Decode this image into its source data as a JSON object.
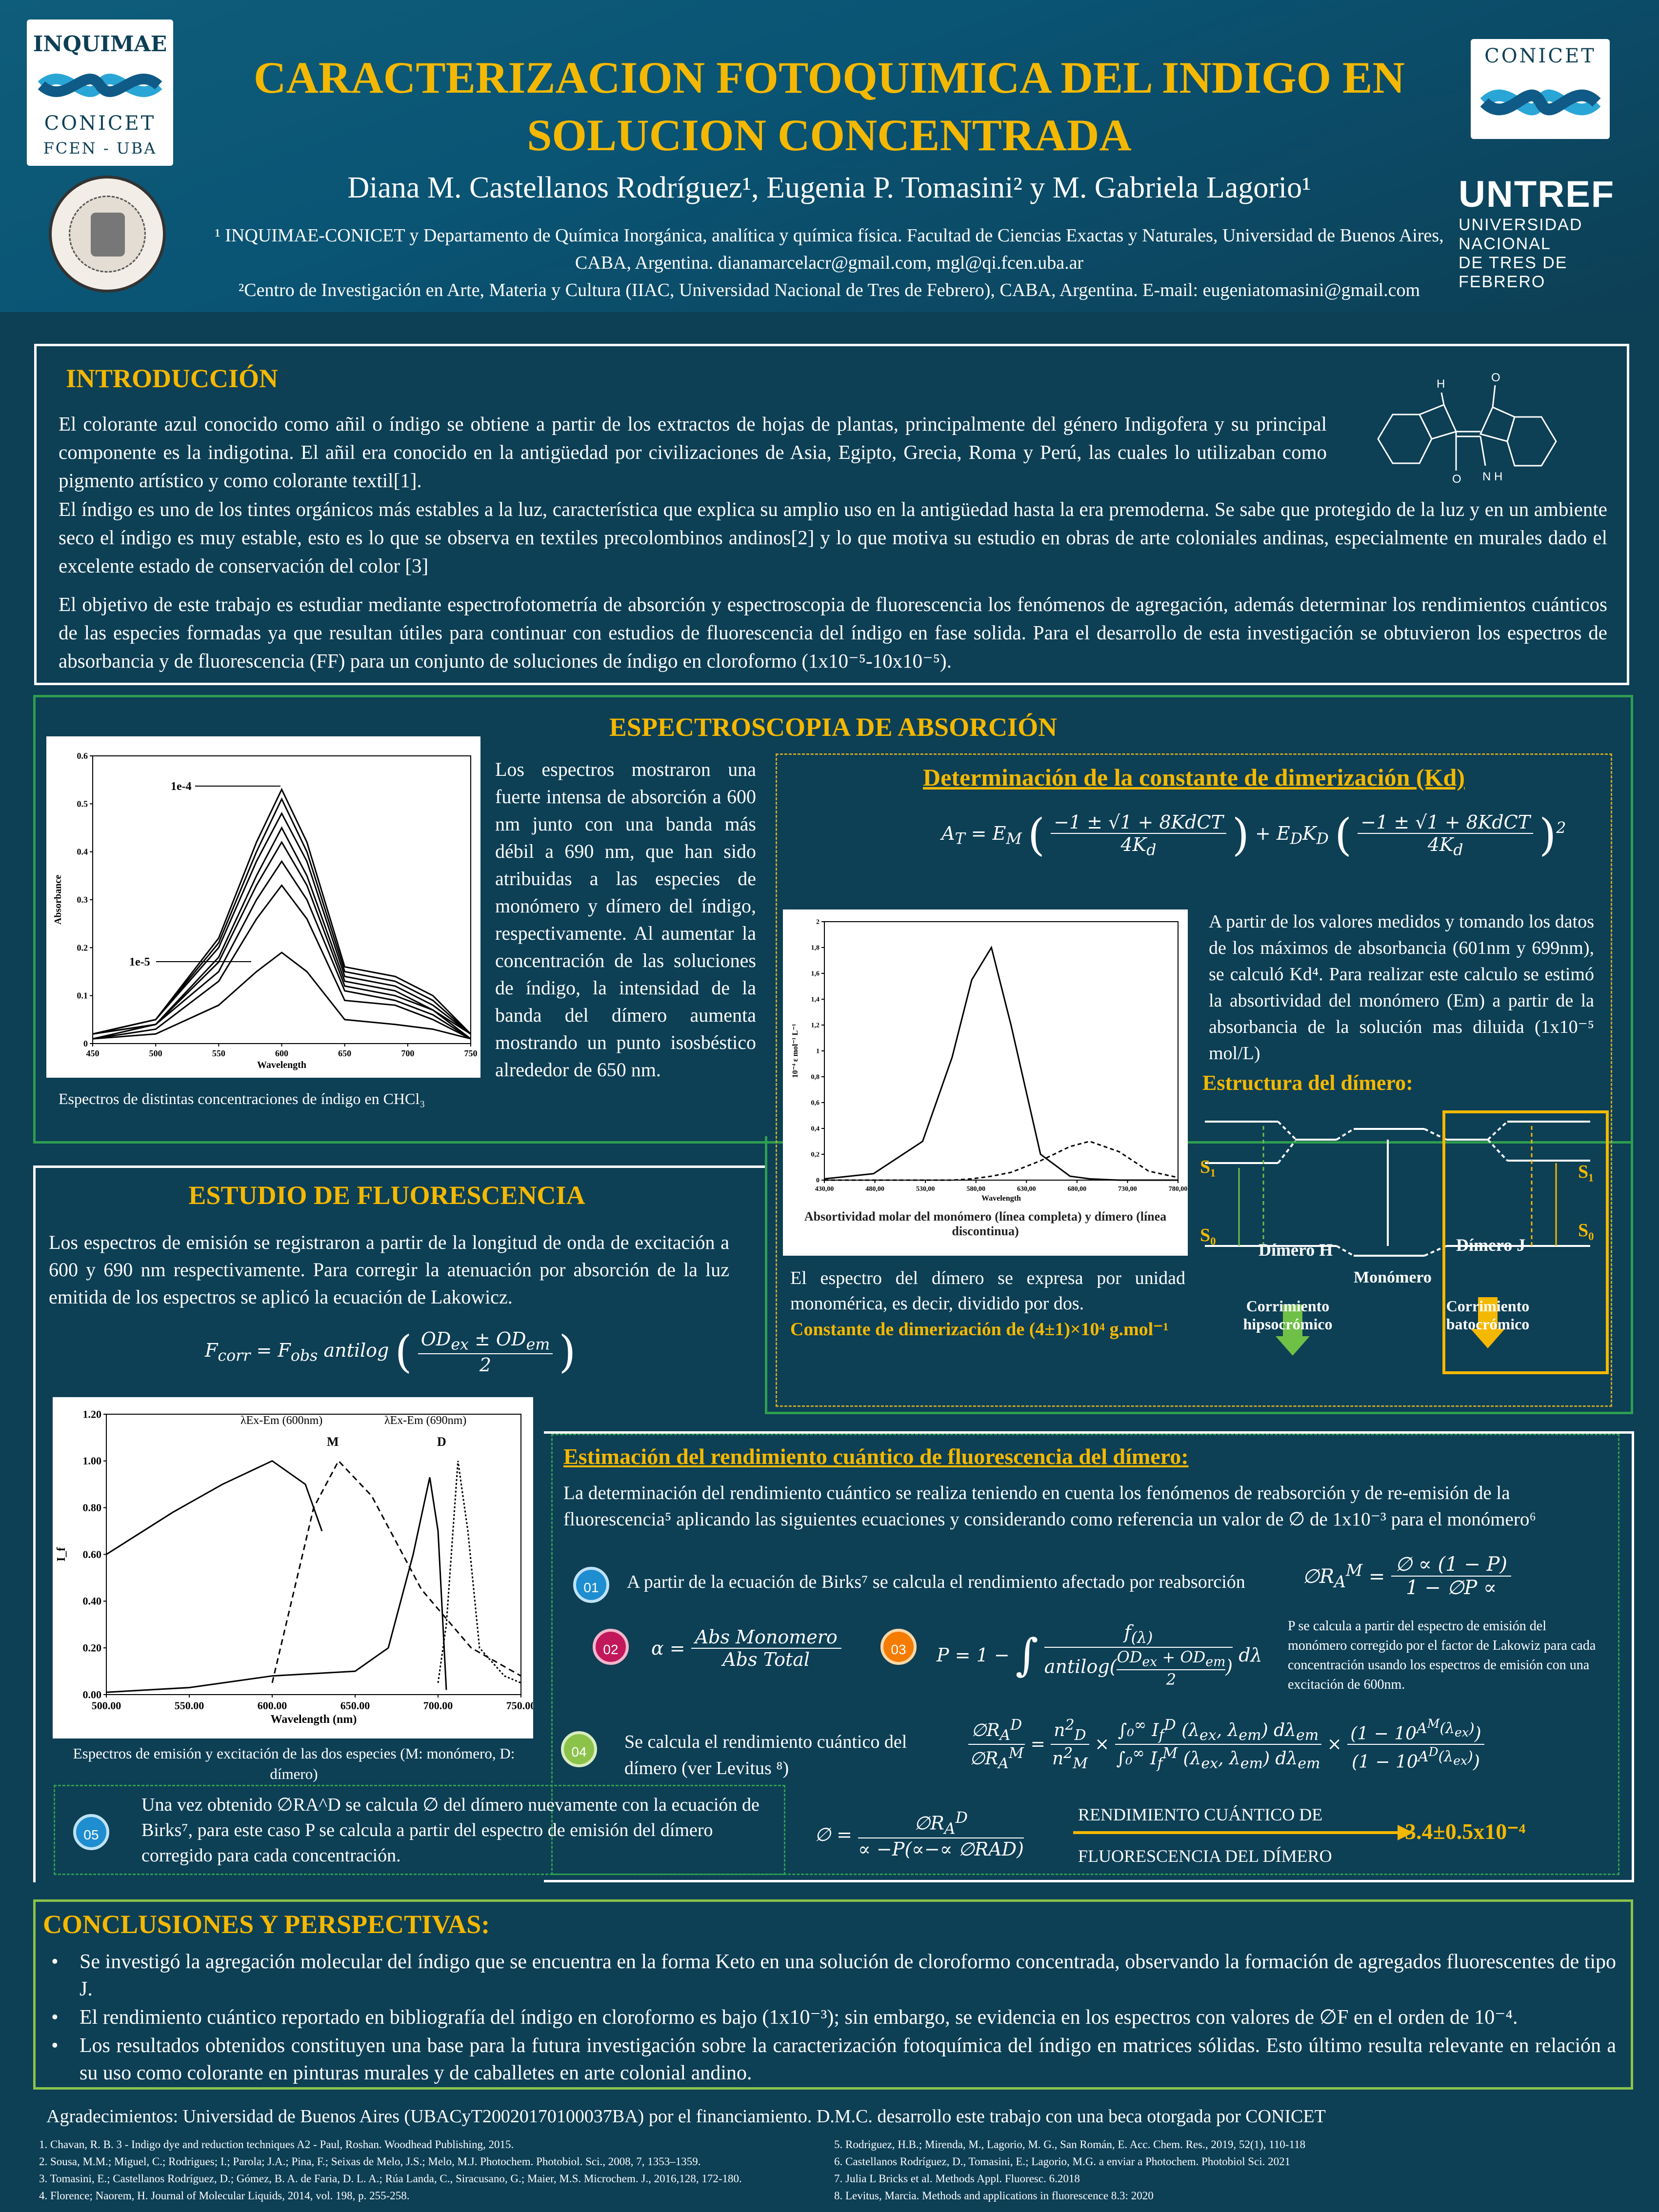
{
  "header": {
    "title_line1": "CARACTERIZACION FOTOQUIMICA DEL INDIGO EN",
    "title_line2": "SOLUCION CONCENTRADA",
    "authors": "Diana M. Castellanos Rodríguez¹, Eugenia P. Tomasini² y M. Gabriela Lagorio¹",
    "affil1": "¹ INQUIMAE-CONICET y Departamento de Química Inorgánica, analítica y química física. Facultad de Ciencias Exactas y Naturales, Universidad de Buenos Aires, CABA, Argentina. dianamarcelacr@gmail.com, mgl@qi.fcen.uba.ar",
    "affil2": "²Centro de Investigación en Arte, Materia y Cultura (IIAC, Universidad Nacional de Tres de Febrero), CABA, Argentina. E-mail: eugeniatomasini@gmail.com"
  },
  "logos": {
    "inquimae_top": "INQUIMAE",
    "inquimae_mid": "CONICET",
    "inquimae_bot": "FCEN - UBA",
    "conicet": "CONICET",
    "untref": "UNTREF",
    "untref_sub1": "UNIVERSIDAD NACIONAL",
    "untref_sub2": "DE TRES DE FEBRERO"
  },
  "intro": {
    "title": "INTRODUCCIÓN",
    "p1": "El colorante azul conocido como añil o índigo se obtiene a partir de los extractos de hojas de plantas, principalmente del género Indigofera y su principal componente es la indigotina. El añil era conocido en la antigüedad por civilizaciones de Asia, Egipto, Grecia, Roma y Perú, las cuales lo utilizaban como pigmento artístico y como colorante textil[1].",
    "p2": "El índigo es uno de los tintes orgánicos más estables a la luz, característica que explica su amplio uso en la antigüedad hasta la era premoderna. Se sabe que protegido de la luz y en un ambiente seco el índigo es muy estable, esto es lo que se observa en textiles precolombinos andinos[2] y lo que motiva su estudio en obras de arte coloniales andinas, especialmente en murales dado el excelente estado de conservación del color [3]",
    "p3": "El objetivo de este trabajo es estudiar mediante espectrofotometría de absorción y espectroscopia de fluorescencia los fenómenos de agregación, además determinar los rendimientos cuánticos de las especies formadas ya que resultan útiles para continuar con estudios de fluorescencia del índigo en fase solida. Para el desarrollo de esta investigación se obtuvieron los espectros de absorbancia y de fluorescencia (FF) para un conjunto de soluciones de índigo en cloroformo (1x10⁻⁵-10x10⁻⁵).",
    "mol_h1": "H",
    "mol_o1": "O",
    "mol_o2": "O",
    "mol_h2": "N\nH"
  },
  "absorcion": {
    "title": "ESPECTROSCOPIA DE ABSORCIÓN",
    "text": "Los espectros mostraron una fuerte intensa de absorción a 600 nm junto con una banda más débil a 690 nm, que han sido atribuidas a las especies de monómero y dímero del índigo, respectivamente. Al aumentar la concentración de las soluciones de índigo, la intensidad de la banda del dímero aumenta mostrando un punto isosbéstico alrededor de 650 nm.",
    "caption": "Espectros de distintas concentraciones de índigo en CHCl₃"
  },
  "kd": {
    "title": "Determinación de la constante de dimerización (Kd)",
    "eq_left": "A_T = E_M ( (−1 ± √(1 + 8KdCT)) / 4K_d ) + E_D K_D ( (−1 ± √(1 + 8KdCT)) / 4K_d )²",
    "text": "A partir de los valores medidos y tomando los datos de los máximos de absorbancia (601nm y 699nm), se calculó Kd⁴. Para realizar este calculo se estimó la absortividad del monómero (Em) a partir de la absorbancia de la solución mas diluida  (1x10⁻⁵ mol/L)",
    "estructura_title": "Estructura del dímero:",
    "mol_caption": "Absortividad molar del monómero (línea completa) y dímero (línea discontinua)",
    "dimer_text": "El espectro del dímero se expresa por unidad monomérica, es decir, dividido por dos.",
    "dimer_const": "Constante de dimerización de (4±1)×10⁴ g.mol⁻¹",
    "dimero_h": "Dímero H",
    "monomero": "Monómero",
    "dimero_j": "Dímero J",
    "corr_hipso": "Corrimiento hipsocrómico",
    "corr_bato": "Corrimiento batocrómico",
    "s1": "S₁",
    "s0": "S₀"
  },
  "fluor": {
    "title": "ESTUDIO DE FLUORESCENCIA",
    "text": "Los espectros de emisión se registraron a partir de la longitud de onda de excitación a 600 y 690 nm respectivamente. Para corregir la atenuación por absorción de la luz emitida de los espectros  se aplicó la ecuación de Lakowicz.",
    "eq": "F_corr = F_obs antilog( (OD_ex ± OD_em) / 2 )",
    "caption": "Espectros de emisión y excitación de las dos especies (M: monómero, D: dímero)",
    "label_m": "λEx-Em (600nm)",
    "label_d": "λEx-Em (690nm)",
    "m": "M",
    "d": "D"
  },
  "rendimiento": {
    "title": "Estimación del rendimiento cuántico de fluorescencia del dímero:",
    "intro": "La determinación del rendimiento cuántico se realiza teniendo en cuenta los fenómenos de reabsorción y de re-emisión de la fluorescencia⁵  aplicando las siguientes ecuaciones y considerando como referencia un valor de ∅ de 1x10⁻³ para el monómero⁶",
    "s01": "A partir de la ecuación de Birks⁷ se calcula el rendimiento afectado por reabsorción",
    "eq01": "∅R_A^M = ∅ ∝ (1 − P) / (1 − ∅P ∝)",
    "eq02": "α = Abs Monomero / Abs Total",
    "eq03": "P = 1 − ∫ f(λ) / antilog((OD_ex + OD_em)/2) dλ",
    "p_note": "P se calcula a partir del espectro de emisión del monómero corregido por el factor de Lakowiz para cada concentración usando los espectros de emisión con una excitación de 600nm.",
    "s04": "Se calcula el rendimiento cuántico del dímero (ver Levitus ⁸)",
    "s05": "Una vez obtenido ∅RA^D se calcula ∅ del dímero nuevamente con la ecuación de Birks⁷, para este caso P  se calcula a partir del espectro de emisión del dímero corregido para cada concentración.",
    "eq05": "∅ = ∅RA^D / (∝ − P(∝ − ∝ ∅RAD))",
    "result_label1": "RENDIMIENTO CUÁNTICO DE",
    "result_label2": "FLUORESCENCIA DEL DÍMERO",
    "result_value": "3.4±0.5x10⁻⁴",
    "n01": "01",
    "n02": "02",
    "n03": "03",
    "n04": "04",
    "n05": "05"
  },
  "conclusiones": {
    "title": "CONCLUSIONES Y PERSPECTIVAS:",
    "items": [
      "Se investigó la agregación molecular del índigo que se encuentra en la forma Keto en una solución de cloroformo concentrada, observando la formación de agregados fluorescentes de tipo J.",
      "El rendimiento cuántico reportado en bibliografía del índigo en cloroformo es bajo (1x10⁻³); sin embargo, se evidencia en los espectros con valores de ∅F en el orden de 10⁻⁴.",
      "Los resultados obtenidos constituyen una base para la futura investigación sobre la caracterización fotoquímica del índigo en matrices sólidas. Esto último resulta relevante en relación a su uso como colorante en pinturas murales y de caballetes en arte colonial andino."
    ]
  },
  "agradecimientos": "Agradecimientos: Universidad de Buenos Aires (UBACyT20020170100037BA) por el financiamiento. D.M.C. desarrollo este trabajo con una beca otorgada por CONICET",
  "references_left": [
    "1.      Chavan, R. B. 3 - Indigo dye and reduction techniques A2 - Paul, Roshan. Woodhead Publishing, 2015.",
    "2.      Sousa, M.M.; Miguel, C.; Rodrigues; I.; Parola; J.A.; Pina, F.; Seixas de Melo, J.S.; Melo, M.J. Photochem. Photobiol. Sci., 2008, 7, 1353–1359.",
    "3.      Tomasini, E.; Castellanos Rodríguez, D.; Gómez, B. A. de Faria, D. L. A.; Rúa Landa, C., Siracusano, G.; Maier, M.S. Microchem. J., 2016,128, 172-180.",
    "4.      Florence; Naorem, H. Journal of  Molecular Liquids, 2014, vol. 198, p. 255-258."
  ],
  "references_right": [
    "5.      Rodriguez, H.B.; Mirenda, M., Lagorio, M. G., San Román, E. Acc. Chem. Res., 2019, 52(1), 110-118",
    "6.      Castellanos Rodríguez, D., Tomasini, E.; Lagorio, M.G. a enviar a Photochem. Photobiol Sci.  2021",
    "7.      Julia L Bricks et al. Methods Appl. Fluoresc. 6.2018",
    "8.      Levitus, Marcia. Methods and applications in fluorescence 8.3: 2020"
  ],
  "colors": {
    "background": "#0d3f55",
    "accent_yellow": "#f5b800",
    "green": "#2e9e4f"
  },
  "chart_data": [
    {
      "type": "line",
      "title": "",
      "xlabel": "Wavelength",
      "ylabel": "Absorbance",
      "xlim": [
        450,
        750
      ],
      "ylim": [
        0,
        0.6
      ],
      "x_ticks": [
        "450",
        "500",
        "550",
        "600",
        "650",
        "700",
        "750"
      ],
      "y_ticks": [
        "0",
        "0.1",
        "0.2",
        "0.3",
        "0.4",
        "0.5",
        "0.6"
      ],
      "annotations": [
        "1e-4",
        "1e-5"
      ],
      "x": [
        450,
        500,
        550,
        580,
        600,
        620,
        650,
        690,
        720,
        750
      ],
      "series": [
        {
          "values": [
            0.02,
            0.05,
            0.22,
            0.42,
            0.53,
            0.42,
            0.16,
            0.14,
            0.1,
            0.02
          ]
        },
        {
          "values": [
            0.02,
            0.05,
            0.21,
            0.4,
            0.51,
            0.4,
            0.15,
            0.13,
            0.09,
            0.02
          ]
        },
        {
          "values": [
            0.02,
            0.05,
            0.2,
            0.38,
            0.48,
            0.38,
            0.14,
            0.12,
            0.08,
            0.02
          ]
        },
        {
          "values": [
            0.02,
            0.04,
            0.18,
            0.35,
            0.45,
            0.35,
            0.13,
            0.11,
            0.07,
            0.02
          ]
        },
        {
          "values": [
            0.02,
            0.04,
            0.17,
            0.33,
            0.42,
            0.33,
            0.12,
            0.1,
            0.07,
            0.01
          ]
        },
        {
          "values": [
            0.01,
            0.04,
            0.15,
            0.3,
            0.38,
            0.3,
            0.11,
            0.09,
            0.06,
            0.01
          ]
        },
        {
          "values": [
            0.01,
            0.03,
            0.13,
            0.26,
            0.33,
            0.26,
            0.09,
            0.08,
            0.05,
            0.01
          ]
        },
        {
          "values": [
            0.01,
            0.02,
            0.08,
            0.15,
            0.19,
            0.15,
            0.05,
            0.04,
            0.03,
            0.01
          ]
        }
      ]
    },
    {
      "type": "line",
      "title": "",
      "xlabel": "Wavelength",
      "ylabel": "10⁻⁴ ε mol⁻¹ L⁻¹",
      "xlim": [
        430,
        790
      ],
      "ylim": [
        0,
        2
      ],
      "x_ticks": [
        "430,00",
        "480,00",
        "530,00",
        "580,00",
        "630,00",
        "680,00",
        "730,00",
        "780,00"
      ],
      "y_ticks": [
        "0",
        "0,2",
        "0,4",
        "0,6",
        "0,8",
        "1",
        "1,2",
        "1,4",
        "1,6",
        "1,8",
        "2"
      ],
      "x": [
        430,
        480,
        530,
        560,
        580,
        600,
        620,
        650,
        680,
        700,
        730,
        760,
        790
      ],
      "series": [
        {
          "values": [
            0.01,
            0.05,
            0.3,
            0.95,
            1.55,
            1.8,
            1.2,
            0.2,
            0.03,
            0.01,
            0.0,
            0.0,
            0.0
          ]
        },
        {
          "values": [
            0.0,
            0.0,
            0.0,
            0.0,
            0.01,
            0.03,
            0.06,
            0.15,
            0.26,
            0.3,
            0.22,
            0.07,
            0.02
          ]
        }
      ]
    },
    {
      "type": "line",
      "title": "",
      "xlabel": "Wavelength (nm)",
      "ylabel": "I_f",
      "xlim": [
        500,
        750
      ],
      "ylim": [
        0,
        1.2
      ],
      "x_ticks": [
        "500.00",
        "550.00",
        "600.00",
        "650.00",
        "700.00",
        "750.00"
      ],
      "y_ticks": [
        "0.00",
        "0.20",
        "0.40",
        "0.60",
        "0.80",
        "1.00",
        "1.20"
      ],
      "series": [
        {
          "name": "M",
          "x": [
            500,
            540,
            570,
            600,
            620,
            630
          ],
          "values": [
            0.6,
            0.78,
            0.9,
            1.0,
            0.9,
            0.7
          ]
        },
        {
          "name": "M",
          "x": [
            600,
            610,
            625,
            640,
            660,
            690,
            720,
            750
          ],
          "values": [
            0.05,
            0.35,
            0.8,
            1.0,
            0.85,
            0.45,
            0.2,
            0.08
          ]
        },
        {
          "name": "D",
          "x": [
            500,
            550,
            600,
            650,
            670,
            685,
            695,
            700,
            705
          ],
          "values": [
            0.01,
            0.03,
            0.08,
            0.1,
            0.2,
            0.6,
            0.93,
            0.7,
            0.02
          ]
        },
        {
          "name": "D",
          "x": [
            700,
            705,
            712,
            718,
            725,
            740,
            750
          ],
          "values": [
            0.05,
            0.3,
            1.0,
            0.7,
            0.2,
            0.08,
            0.05
          ]
        }
      ]
    }
  ]
}
